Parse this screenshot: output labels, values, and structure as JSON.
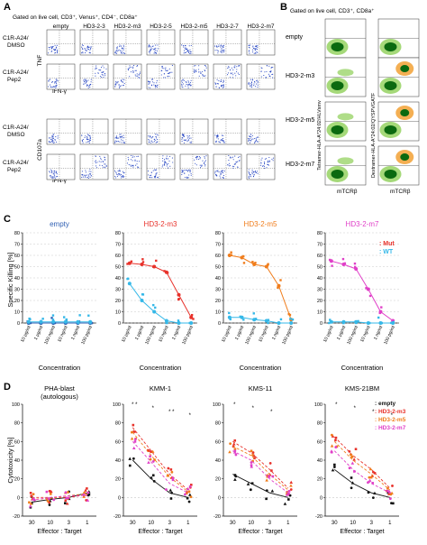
{
  "colors": {
    "empty": "#2f5fb3",
    "m3": "#e8322b",
    "m5": "#f07d1c",
    "m7": "#e040c8",
    "wt": "#35b8e8",
    "black": "#111111",
    "flow_blue": "#2040c0",
    "density_dark": "#0b6a10",
    "density_mid": "#9bd56a",
    "density_light": "#f3a640"
  },
  "panelA": {
    "label": "A",
    "header": "Gated on live cell, CD3⁺, Venus⁺, CD4⁻, CD8a⁺",
    "columns": [
      "empty",
      "HD3-2-3",
      "HD3-2-m3",
      "HD3-2-5",
      "HD3-2-m5",
      "HD3-2-7",
      "HD3-2-m7"
    ],
    "rows": [
      {
        "label1": "C1R-A24/",
        "label2": "DMSO",
        "ylabel": "TNF",
        "xlabel": "IFN-γ"
      },
      {
        "label1": "C1R-A24/",
        "label2": "Pep2",
        "ylabel": "",
        "xlabel": ""
      },
      {
        "label1": "C1R-A24/",
        "label2": "DMSO",
        "ylabel": "CD107a",
        "xlabel": "IFN-γ"
      },
      {
        "label1": "C1R-A24/",
        "label2": "Pep2",
        "ylabel": "",
        "xlabel": ""
      }
    ]
  },
  "panelB": {
    "label": "B",
    "header": "Gated on live cell, CD3⁺, CD8a⁺",
    "rows": [
      "empty",
      "HD3-2-m3",
      "HD3-2-m5",
      "HD3-2-m7"
    ],
    "ylabel_left": "Tetramer-HLA-A*24:02/HLVsmv",
    "ylabel_right": "Dextramer-HLA-A*24:02/QYSPVGATF",
    "xlabel": "mTCRβ"
  },
  "panelC": {
    "label": "C",
    "ylabel": "Specific Killing [%]",
    "xlabel": "Concentration",
    "ticks": [
      "10 μg/ml",
      "1 μg/ml",
      "100 ng/ml",
      "10 ng/ml",
      "1 ng/ml",
      "100 pg/ml"
    ],
    "yticks": [
      "0",
      "10",
      "20",
      "30",
      "40",
      "50",
      "60",
      "70",
      "80"
    ],
    "legend": [
      {
        "label": ": Mut",
        "key": "m3"
      },
      {
        "label": ": WT",
        "key": "wt"
      }
    ],
    "subplots": [
      {
        "title": "empty",
        "key": "empty",
        "mut": [
          0,
          0,
          0,
          0,
          0,
          0
        ],
        "wt": [
          1,
          1,
          1,
          1,
          1,
          1
        ]
      },
      {
        "title": "HD3-2-m3",
        "key": "m3",
        "mut": [
          53,
          52,
          50,
          45,
          25,
          5
        ],
        "wt": [
          35,
          20,
          10,
          2,
          0,
          0
        ]
      },
      {
        "title": "HD3-2-m5",
        "key": "m5",
        "mut": [
          60,
          58,
          52,
          50,
          33,
          3
        ],
        "wt": [
          5,
          5,
          3,
          2,
          0,
          0
        ]
      },
      {
        "title": "HD3-2-m7",
        "key": "m7",
        "mut": [
          55,
          52,
          48,
          30,
          10,
          2
        ],
        "wt": [
          1,
          1,
          1,
          0,
          0,
          0
        ]
      }
    ]
  },
  "panelD": {
    "label": "D",
    "ylabel": "Cytotoxicity [%]",
    "xlabel": "Effector : Target",
    "xticks": [
      "30",
      "10",
      "3",
      "1"
    ],
    "yticks": [
      "-20",
      "0",
      "20",
      "40",
      "60",
      "80",
      "100"
    ],
    "legend": [
      {
        "label": ": empty",
        "key": "black"
      },
      {
        "label": ": HD3-2-m3",
        "key": "m3"
      },
      {
        "label": ": HD3-2-m5",
        "key": "m5"
      },
      {
        "label": ": HD3-2-m7",
        "key": "m7"
      }
    ],
    "subplots": [
      {
        "title1": "PHA-blast",
        "title2": "(autologous)",
        "empty": [
          -5,
          -2,
          0,
          5
        ],
        "m3": [
          0,
          0,
          0,
          3
        ],
        "m5": [
          -2,
          -1,
          2,
          4
        ],
        "m7": [
          -3,
          0,
          2,
          2
        ],
        "stars": []
      },
      {
        "title1": "KMM-1",
        "title2": "",
        "empty": [
          40,
          20,
          5,
          0
        ],
        "m3": [
          75,
          50,
          25,
          8
        ],
        "m5": [
          70,
          45,
          22,
          6
        ],
        "m7": [
          60,
          38,
          15,
          5
        ],
        "stars": [
          "* *",
          "*",
          "* *",
          "*"
        ]
      },
      {
        "title1": "KMS-11",
        "title2": "",
        "empty": [
          25,
          15,
          5,
          0
        ],
        "m3": [
          60,
          48,
          30,
          10
        ],
        "m5": [
          55,
          45,
          25,
          8
        ],
        "m7": [
          50,
          40,
          20,
          5
        ],
        "stars": [
          "*",
          "*",
          "*"
        ]
      },
      {
        "title1": "KMS-21BM",
        "title2": "",
        "empty": [
          30,
          15,
          5,
          0
        ],
        "m3": [
          65,
          45,
          30,
          10
        ],
        "m5": [
          60,
          40,
          25,
          8
        ],
        "m7": [
          50,
          30,
          15,
          5
        ],
        "stars": [
          "*",
          "*",
          "*",
          "*"
        ]
      }
    ]
  }
}
